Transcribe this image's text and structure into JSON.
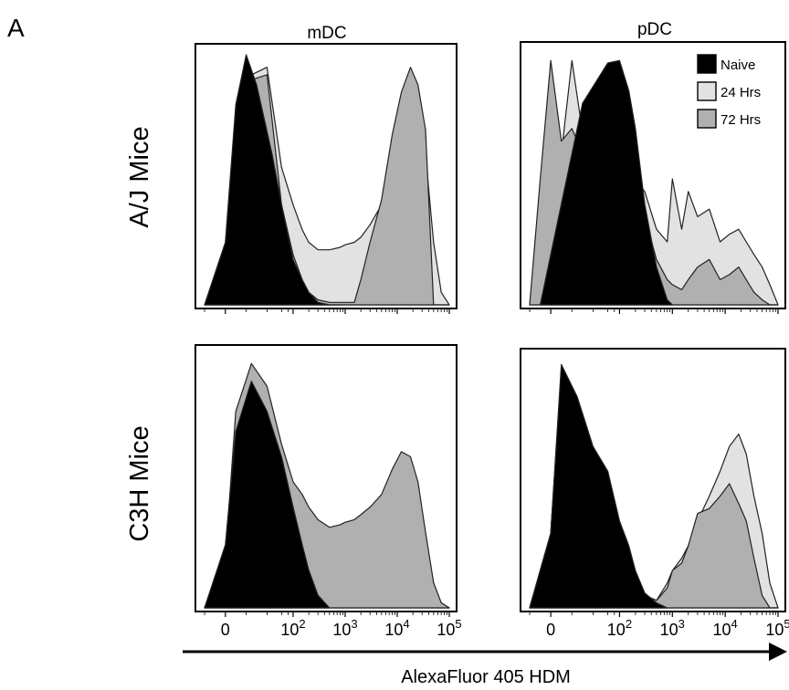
{
  "panel_letter": "A",
  "columns": [
    "mDC",
    "pDC"
  ],
  "rows": [
    "A/J Mice",
    "C3H Mice"
  ],
  "x_axis_label": "AlexaFluor 405 HDM",
  "x_ticks": [
    {
      "value": 0,
      "label": "0"
    },
    {
      "value": 100,
      "label": "10",
      "exp": "2"
    },
    {
      "value": 1000,
      "label": "10",
      "exp": "3"
    },
    {
      "value": 10000,
      "label": "10",
      "exp": "4"
    },
    {
      "value": 100000,
      "label": "10",
      "exp": "5"
    }
  ],
  "legend": [
    {
      "name": "Naive",
      "color": "#000000"
    },
    {
      "name": "24 Hrs",
      "color": "#e2e2e2"
    },
    {
      "name": "72 Hrs",
      "color": "#b0b0b0"
    }
  ],
  "chart_data": [
    {
      "type": "area",
      "title": "mDC",
      "row": "A/J Mice",
      "xscale": "biexponential",
      "xlabel": "AlexaFluor 405 HDM",
      "ylim": [
        0,
        100
      ],
      "series": [
        {
          "name": "24 Hrs",
          "color": "#e2e2e2",
          "x": [
            -20,
            0,
            10,
            25,
            40,
            60,
            100,
            150,
            200,
            300,
            500,
            800,
            1000,
            1500,
            2000,
            3000,
            5000,
            8000,
            12000,
            18000,
            25000,
            35000,
            50000,
            70000,
            100000
          ],
          "y": [
            0,
            8,
            40,
            92,
            95,
            55,
            40,
            30,
            25,
            22,
            22,
            23,
            24,
            25,
            27,
            32,
            40,
            50,
            58,
            65,
            72,
            60,
            25,
            5,
            0
          ]
        },
        {
          "name": "72 Hrs",
          "color": "#b0b0b0",
          "x": [
            -20,
            0,
            10,
            25,
            40,
            60,
            100,
            150,
            200,
            300,
            500,
            800,
            1000,
            1500,
            2000,
            3000,
            5000,
            8000,
            12000,
            18000,
            25000,
            35000,
            50000,
            70000,
            100000
          ],
          "y": [
            0,
            8,
            38,
            90,
            92,
            40,
            20,
            10,
            5,
            2,
            1,
            1,
            1,
            1,
            10,
            25,
            42,
            68,
            85,
            95,
            88,
            70,
            0,
            0,
            0
          ]
        },
        {
          "name": "Naive",
          "color": "#000000",
          "x": [
            -20,
            0,
            10,
            20,
            30,
            45,
            60,
            100,
            150,
            200,
            300,
            500,
            800
          ],
          "y": [
            0,
            25,
            80,
            100,
            88,
            60,
            40,
            18,
            10,
            5,
            1,
            0,
            0
          ]
        }
      ]
    },
    {
      "type": "area",
      "title": "pDC",
      "row": "A/J Mice",
      "xscale": "biexponential",
      "xlabel": "AlexaFluor 405 HDM",
      "ylim": [
        0,
        100
      ],
      "series": [
        {
          "name": "24 Hrs",
          "color": "#e2e2e2",
          "x": [
            -20,
            -10,
            0,
            10,
            20,
            40,
            60,
            100,
            150,
            200,
            300,
            500,
            800,
            1000,
            1500,
            2000,
            3000,
            5000,
            8000,
            12000,
            18000,
            25000,
            35000,
            50000,
            70000,
            100000
          ],
          "y": [
            0,
            40,
            92,
            60,
            97,
            40,
            30,
            35,
            45,
            50,
            45,
            30,
            25,
            50,
            30,
            45,
            35,
            38,
            25,
            28,
            30,
            25,
            20,
            15,
            8,
            0
          ]
        },
        {
          "name": "72 Hrs",
          "color": "#b0b0b0",
          "x": [
            -20,
            -10,
            0,
            10,
            20,
            40,
            60,
            100,
            150,
            200,
            300,
            500,
            800,
            1000,
            1500,
            2000,
            3000,
            5000,
            8000,
            12000,
            18000,
            25000,
            35000,
            50000,
            70000,
            100000
          ],
          "y": [
            0,
            50,
            97,
            65,
            70,
            50,
            40,
            35,
            40,
            40,
            35,
            18,
            10,
            8,
            6,
            10,
            15,
            18,
            10,
            12,
            15,
            10,
            5,
            2,
            0,
            0
          ]
        },
        {
          "name": "Naive",
          "color": "#000000",
          "x": [
            -10,
            10,
            30,
            60,
            100,
            150,
            200,
            300,
            500,
            800,
            1000
          ],
          "y": [
            0,
            40,
            80,
            96,
            97,
            85,
            70,
            40,
            15,
            2,
            0
          ]
        }
      ]
    },
    {
      "type": "area",
      "title": "mDC",
      "row": "C3H Mice",
      "xscale": "biexponential",
      "xlabel": "AlexaFluor 405 HDM",
      "ylim": [
        0,
        100
      ],
      "series": [
        {
          "name": "24 Hrs",
          "color": "#e2e2e2",
          "x": [
            -20,
            0,
            10,
            25,
            40,
            60,
            100,
            150,
            200,
            300,
            500,
            800,
            1000,
            1500,
            2000,
            3000,
            5000,
            8000,
            12000,
            18000,
            25000,
            35000,
            50000,
            70000,
            100000
          ],
          "y": [
            0,
            20,
            75,
            95,
            85,
            60,
            45,
            40,
            35,
            25,
            20,
            17,
            17,
            18,
            18,
            18,
            20,
            22,
            24,
            25,
            22,
            18,
            8,
            2,
            0
          ]
        },
        {
          "name": "72 Hrs",
          "color": "#b0b0b0",
          "x": [
            -20,
            0,
            10,
            25,
            40,
            60,
            100,
            150,
            200,
            300,
            500,
            800,
            1000,
            1500,
            2000,
            3000,
            5000,
            8000,
            12000,
            18000,
            25000,
            35000,
            50000,
            70000,
            100000
          ],
          "y": [
            0,
            20,
            78,
            97,
            88,
            65,
            50,
            45,
            40,
            35,
            32,
            33,
            34,
            35,
            37,
            40,
            45,
            55,
            62,
            60,
            50,
            30,
            10,
            2,
            0
          ]
        },
        {
          "name": "Naive",
          "color": "#000000",
          "x": [
            -20,
            0,
            10,
            25,
            40,
            60,
            100,
            150,
            200,
            300,
            500
          ],
          "y": [
            0,
            25,
            70,
            90,
            78,
            60,
            40,
            25,
            15,
            5,
            0
          ]
        }
      ]
    },
    {
      "type": "area",
      "title": "pDC",
      "row": "C3H Mice",
      "xscale": "biexponential",
      "xlabel": "AlexaFluor 405 HDM",
      "ylim": [
        0,
        100
      ],
      "series": [
        {
          "name": "24 Hrs",
          "color": "#e2e2e2",
          "x": [
            -20,
            0,
            10,
            25,
            40,
            60,
            100,
            150,
            200,
            300,
            500,
            800,
            1000,
            1500,
            2000,
            3000,
            5000,
            8000,
            12000,
            18000,
            25000,
            35000,
            50000,
            70000,
            100000
          ],
          "y": [
            0,
            30,
            95,
            80,
            60,
            50,
            30,
            20,
            10,
            5,
            3,
            10,
            15,
            20,
            25,
            35,
            45,
            55,
            65,
            70,
            62,
            45,
            30,
            10,
            0
          ]
        },
        {
          "name": "72 Hrs",
          "color": "#b0b0b0",
          "x": [
            -20,
            0,
            10,
            25,
            40,
            60,
            100,
            150,
            200,
            300,
            500,
            800,
            1000,
            1500,
            2000,
            3000,
            5000,
            8000,
            12000,
            18000,
            25000,
            35000,
            50000,
            70000,
            100000
          ],
          "y": [
            0,
            30,
            95,
            80,
            60,
            50,
            30,
            20,
            10,
            5,
            3,
            8,
            15,
            18,
            25,
            38,
            40,
            45,
            50,
            42,
            35,
            20,
            5,
            0,
            0
          ]
        },
        {
          "name": "Naive",
          "color": "#000000",
          "x": [
            -20,
            0,
            10,
            25,
            40,
            60,
            100,
            150,
            200,
            300,
            500,
            800
          ],
          "y": [
            0,
            30,
            98,
            85,
            65,
            55,
            35,
            25,
            15,
            6,
            2,
            0
          ]
        }
      ]
    }
  ]
}
